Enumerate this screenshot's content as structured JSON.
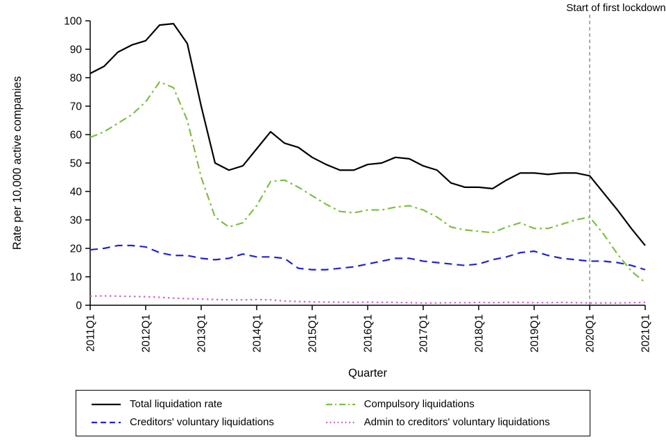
{
  "chart_data": {
    "type": "line",
    "title": "",
    "xlabel": "Quarter",
    "ylabel": "Rate per 10,000 active companies",
    "ylim": [
      0,
      100
    ],
    "y_ticks": [
      0,
      10,
      20,
      30,
      40,
      50,
      60,
      70,
      80,
      90,
      100
    ],
    "x_tick_every": 4,
    "grid": false,
    "legend_position": "bottom",
    "x": [
      "2011Q1",
      "2011Q2",
      "2011Q3",
      "2011Q4",
      "2012Q1",
      "2012Q2",
      "2012Q3",
      "2012Q4",
      "2013Q1",
      "2013Q2",
      "2013Q3",
      "2013Q4",
      "2014Q1",
      "2014Q2",
      "2014Q3",
      "2014Q4",
      "2015Q1",
      "2015Q2",
      "2015Q3",
      "2015Q4",
      "2016Q1",
      "2016Q2",
      "2016Q3",
      "2016Q4",
      "2017Q1",
      "2017Q2",
      "2017Q3",
      "2017Q4",
      "2018Q1",
      "2018Q2",
      "2018Q3",
      "2018Q4",
      "2019Q1",
      "2019Q2",
      "2019Q3",
      "2019Q4",
      "2020Q1",
      "2020Q2",
      "2020Q3",
      "2020Q4",
      "2021Q1"
    ],
    "annotation": {
      "label": "Start of first lockdown",
      "x": "2020Q1",
      "line_style": "dashed",
      "line_color": "#808080"
    },
    "series": [
      {
        "name": "Total liquidation rate",
        "color": "#000000",
        "dash": "solid",
        "values": [
          81.5,
          84,
          89,
          91.5,
          93,
          98.5,
          99,
          92,
          70,
          50,
          47.5,
          49,
          55,
          61,
          57,
          55.5,
          52,
          49.5,
          47.5,
          47.5,
          49.5,
          50,
          52,
          51.5,
          49,
          47.5,
          43,
          41.5,
          41.5,
          41,
          44,
          46.5,
          46.5,
          46,
          46.5,
          46.5,
          45.5,
          39.5,
          33.5,
          27,
          21
        ]
      },
      {
        "name": "Creditors' voluntary liquidations",
        "color": "#2222cc",
        "dash": "dashed",
        "values": [
          19.5,
          20,
          21,
          21,
          20.5,
          18.5,
          17.5,
          17.5,
          16.5,
          16,
          16.5,
          18,
          17,
          17,
          16.5,
          13,
          12.5,
          12.5,
          13,
          13.5,
          14.5,
          15.5,
          16.5,
          16.5,
          15.5,
          15,
          14.5,
          14,
          14.5,
          16,
          17,
          18.5,
          19,
          17.5,
          16.5,
          16,
          15.5,
          15.5,
          15,
          14,
          12.5
        ]
      },
      {
        "name": "Compulsory liquidations",
        "color": "#7ac142",
        "dash": "dashdot",
        "values": [
          59,
          61,
          64,
          67,
          71.5,
          78.5,
          76.5,
          65,
          45,
          31,
          27.5,
          29,
          35,
          43.5,
          44,
          41.5,
          38.5,
          35.5,
          33,
          32.5,
          33.5,
          33.5,
          34.5,
          35,
          33.5,
          31,
          27.5,
          26.5,
          26,
          25.5,
          27.5,
          29,
          27,
          27,
          28.5,
          30,
          31,
          25,
          18,
          12,
          8
        ]
      },
      {
        "name": "Admin to creditors' voluntary liquidations",
        "color": "#cc66cc",
        "dash": "dotted",
        "values": [
          3.2,
          3.3,
          3.2,
          3.1,
          3.0,
          2.8,
          2.5,
          2.3,
          2.2,
          2.0,
          1.9,
          1.9,
          2.0,
          1.9,
          1.5,
          1.3,
          1.2,
          1.1,
          1.1,
          1.0,
          1.1,
          1.0,
          1.0,
          0.9,
          0.8,
          0.8,
          0.9,
          0.9,
          1.0,
          0.9,
          1.0,
          1.0,
          0.9,
          0.9,
          1.0,
          0.9,
          0.8,
          0.8,
          0.8,
          0.9,
          1.0
        ]
      }
    ]
  }
}
